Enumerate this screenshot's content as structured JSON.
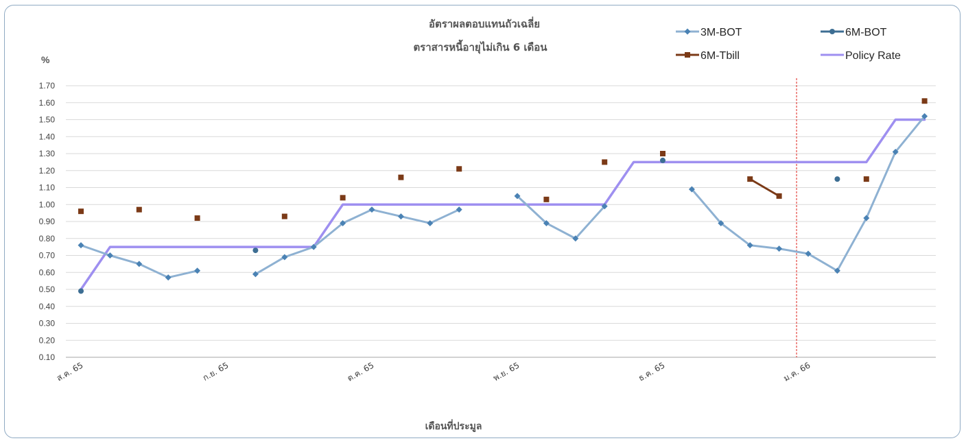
{
  "chart_data": {
    "type": "line",
    "title": [
      "อัตราผลตอบแทนถัวเฉลี่ย",
      "ตราสารหนี้อายุไม่เกิน 6 เดือน"
    ],
    "ylabel": "%",
    "xlabel": "เดือนที่ประมูล",
    "ylim": [
      0.1,
      1.7
    ],
    "yticks": [
      "1.70",
      "1.60",
      "1.50",
      "1.40",
      "1.30",
      "1.20",
      "1.10",
      "1.00",
      "0.90",
      "0.80",
      "0.70",
      "0.60",
      "0.50",
      "0.40",
      "0.30",
      "0.20",
      "0.10"
    ],
    "x": [
      0,
      1,
      2,
      3,
      4,
      5,
      6,
      7,
      8,
      9,
      10,
      11,
      12,
      13,
      14,
      15,
      16,
      17,
      18,
      19,
      20,
      21,
      22,
      23,
      24,
      25,
      26,
      27,
      28,
      29
    ],
    "month_labels": [
      {
        "label": "ส.ค. 65",
        "x": 0
      },
      {
        "label": "ก.ย. 65",
        "x": 5
      },
      {
        "label": "ต.ค. 65",
        "x": 10
      },
      {
        "label": "พ.ย. 65",
        "x": 15
      },
      {
        "label": "ธ.ค. 65",
        "x": 20
      },
      {
        "label": "ม.ค. 66",
        "x": 25
      }
    ],
    "divider_x": 24.6,
    "grid": true,
    "legend_position": "top-right",
    "series": [
      {
        "name": "3M-BOT",
        "color": "#8eb1d2",
        "style": "line-diamond",
        "values": [
          0.76,
          0.7,
          0.65,
          0.57,
          0.61,
          null,
          0.59,
          0.69,
          0.75,
          0.89,
          0.97,
          0.93,
          0.89,
          0.97,
          null,
          1.05,
          0.89,
          0.8,
          0.99,
          null,
          null,
          1.09,
          0.89,
          0.76,
          0.74,
          0.71,
          0.61,
          0.92,
          1.31,
          1.52
        ]
      },
      {
        "name": "6M-BOT",
        "color": "#3d6e93",
        "style": "line-dot",
        "values": [
          0.49,
          null,
          null,
          null,
          null,
          null,
          0.73,
          null,
          null,
          null,
          null,
          null,
          null,
          null,
          null,
          null,
          null,
          null,
          null,
          null,
          1.26,
          null,
          null,
          null,
          null,
          null,
          1.15,
          null,
          null,
          null
        ]
      },
      {
        "name": "6M-Tbill",
        "color": "#7b3a17",
        "style": "line-square",
        "values": [
          0.96,
          null,
          0.97,
          null,
          0.92,
          null,
          null,
          0.93,
          null,
          1.04,
          null,
          1.16,
          null,
          1.21,
          null,
          null,
          1.03,
          null,
          1.25,
          null,
          1.3,
          null,
          null,
          1.15,
          1.05,
          null,
          null,
          1.15,
          null,
          1.61
        ]
      },
      {
        "name": "Policy Rate",
        "color": "#9e8ff0",
        "style": "line",
        "values": [
          0.5,
          0.75,
          0.75,
          0.75,
          0.75,
          0.75,
          0.75,
          0.75,
          0.75,
          1.0,
          1.0,
          1.0,
          1.0,
          1.0,
          1.0,
          1.0,
          1.0,
          1.0,
          1.0,
          1.25,
          1.25,
          1.25,
          1.25,
          1.25,
          1.25,
          1.25,
          1.25,
          1.25,
          1.5,
          1.5
        ]
      }
    ]
  }
}
